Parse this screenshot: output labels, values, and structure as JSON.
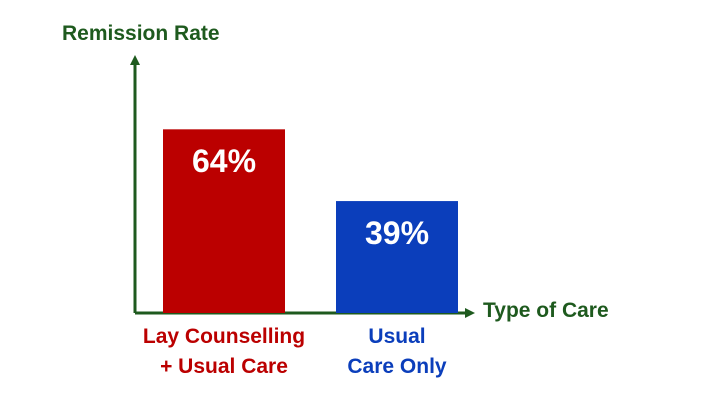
{
  "chart_data": {
    "type": "bar",
    "xlabel": "Type of Care",
    "ylabel": "Remission Rate",
    "ylim": [
      0,
      100
    ],
    "grid": false,
    "categories": [
      {
        "line1": "Lay Counselling",
        "line2": "+ Usual Care"
      },
      {
        "line1": "Usual",
        "line2": "Care Only"
      }
    ],
    "values": [
      64,
      39
    ],
    "value_labels": [
      "64%",
      "39%"
    ],
    "bar_colors": [
      "#bb0000",
      "#0b3ebb"
    ],
    "axis_color": "#1e5a1e"
  }
}
